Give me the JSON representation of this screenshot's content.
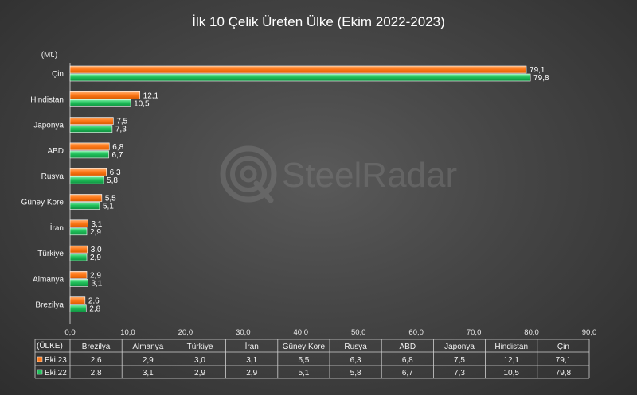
{
  "chart_data": {
    "type": "bar",
    "orientation": "horizontal",
    "title": "İlk 10 Çelik Üreten Ülke (Ekim 2022-2023)",
    "unit_label": "(Mt.)",
    "table_header": "(ÜLKE)",
    "categories": [
      "Çin",
      "Hindistan",
      "Japonya",
      "ABD",
      "Rusya",
      "Güney Kore",
      "İran",
      "Türkiye",
      "Almanya",
      "Brezilya"
    ],
    "series": [
      {
        "name": "Eki.23",
        "color": "#ff7a1a",
        "values": [
          79.1,
          12.1,
          7.5,
          6.8,
          6.3,
          5.5,
          3.1,
          3.0,
          2.9,
          2.6
        ],
        "labels": [
          "79,1",
          "12,1",
          "7,5",
          "6,8",
          "6,3",
          "5,5",
          "3,1",
          "3,0",
          "2,9",
          "2,6"
        ]
      },
      {
        "name": "Eki.22",
        "color": "#1fbf5a",
        "values": [
          79.8,
          10.5,
          7.3,
          6.7,
          5.8,
          5.1,
          2.9,
          2.9,
          3.1,
          2.8
        ],
        "labels": [
          "79,8",
          "10,5",
          "7,3",
          "6,7",
          "5,8",
          "5,1",
          "2,9",
          "2,9",
          "3,1",
          "2,8"
        ]
      }
    ],
    "xlim": [
      0,
      90
    ],
    "xticks": [
      "0,0",
      "10,0",
      "20,0",
      "30,0",
      "40,0",
      "50,0",
      "60,0",
      "70,0",
      "80,0",
      "90,0"
    ],
    "grid": false,
    "legend": "table-left",
    "table_columns": [
      "Brezilya",
      "Almanya",
      "Türkiye",
      "İran",
      "Güney Kore",
      "Rusya",
      "ABD",
      "Japonya",
      "Hindistan",
      "Çin"
    ],
    "table_rows": [
      {
        "series": "Eki.23",
        "values": [
          "2,6",
          "2,9",
          "3,0",
          "3,1",
          "5,5",
          "6,3",
          "6,8",
          "7,5",
          "12,1",
          "79,1"
        ]
      },
      {
        "series": "Eki.22",
        "values": [
          "2,8",
          "3,1",
          "2,9",
          "2,9",
          "5,1",
          "5,8",
          "6,7",
          "7,3",
          "10,5",
          "79,8"
        ]
      }
    ]
  },
  "watermark": {
    "text": "SteelRadar",
    "icon": "steelradar-logo-icon"
  }
}
